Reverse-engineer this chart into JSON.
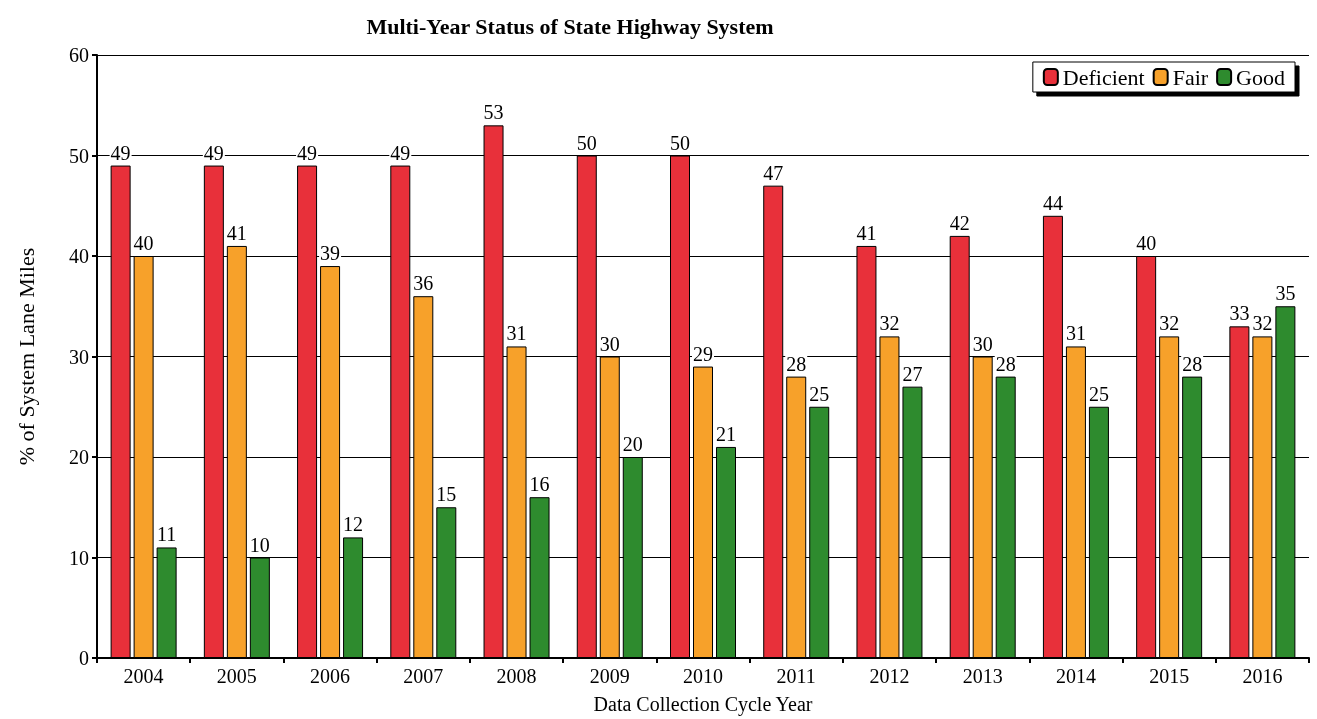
{
  "chart_data": {
    "type": "bar",
    "title": "Multi-Year Status of State Highway System",
    "xlabel": "Data Collection Cycle Year",
    "ylabel": "% of System Lane Miles",
    "categories": [
      "2004",
      "2005",
      "2006",
      "2007",
      "2008",
      "2009",
      "2010",
      "2011",
      "2012",
      "2013",
      "2014",
      "2015",
      "2016"
    ],
    "series": [
      {
        "name": "Deficient",
        "color": "#e8303a",
        "values": [
          49,
          49,
          49,
          49,
          53,
          50,
          50,
          47,
          41,
          42,
          44,
          40,
          33
        ]
      },
      {
        "name": "Fair",
        "color": "#f7a12a",
        "values": [
          40,
          41,
          39,
          36,
          31,
          30,
          29,
          28,
          32,
          30,
          31,
          32,
          32
        ]
      },
      {
        "name": "Good",
        "color": "#2e8b2e",
        "values": [
          11,
          10,
          12,
          15,
          16,
          20,
          21,
          25,
          27,
          28,
          25,
          28,
          35
        ]
      }
    ],
    "ylim": [
      0,
      60
    ],
    "yticks": [
      0,
      10,
      20,
      30,
      40,
      50,
      60
    ],
    "grid": "y",
    "legend": "top right",
    "data_labels": true
  }
}
